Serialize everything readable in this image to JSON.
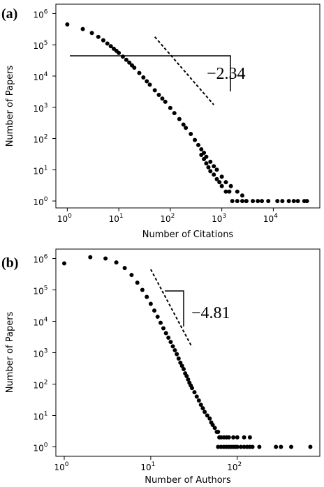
{
  "chart_data": [
    {
      "type": "scatter",
      "panel_label": "(a)",
      "title": "",
      "xlabel": "Number of Citations",
      "ylabel": "Number of Papers",
      "x_scale": "log",
      "y_scale": "log",
      "xlim": [
        0.6,
        80000
      ],
      "ylim": [
        0.6,
        2000000
      ],
      "x_ticks": [
        {
          "value": 1,
          "base": "10",
          "exp": "0"
        },
        {
          "value": 10,
          "base": "10",
          "exp": "1"
        },
        {
          "value": 100,
          "base": "10",
          "exp": "2"
        },
        {
          "value": 1000,
          "base": "10",
          "exp": "3"
        },
        {
          "value": 10000,
          "base": "10",
          "exp": "4"
        }
      ],
      "y_ticks": [
        {
          "value": 1,
          "base": "10",
          "exp": "0"
        },
        {
          "value": 10,
          "base": "10",
          "exp": "1"
        },
        {
          "value": 100,
          "base": "10",
          "exp": "2"
        },
        {
          "value": 1000,
          "base": "10",
          "exp": "3"
        },
        {
          "value": 10000,
          "base": "10",
          "exp": "4"
        },
        {
          "value": 100000,
          "base": "10",
          "exp": "5"
        },
        {
          "value": 1000000,
          "base": "10",
          "exp": "6"
        }
      ],
      "grid": false,
      "color": "#000000",
      "slope_annotation": {
        "text": "−2.34",
        "line_x": [
          50,
          700
        ],
        "line_y": [
          180000,
          1200
        ]
      },
      "points": [
        [
          1,
          450000
        ],
        [
          2,
          320000
        ],
        [
          3,
          240000
        ],
        [
          4,
          180000
        ],
        [
          5,
          140000
        ],
        [
          6,
          110000
        ],
        [
          7,
          90000
        ],
        [
          8,
          75000
        ],
        [
          9,
          64000
        ],
        [
          10,
          55000
        ],
        [
          12,
          42000
        ],
        [
          14,
          33000
        ],
        [
          16,
          27000
        ],
        [
          18,
          22000
        ],
        [
          20,
          18500
        ],
        [
          25,
          12500
        ],
        [
          30,
          9000
        ],
        [
          35,
          6800
        ],
        [
          40,
          5300
        ],
        [
          50,
          3500
        ],
        [
          60,
          2500
        ],
        [
          70,
          1900
        ],
        [
          80,
          1500
        ],
        [
          100,
          950
        ],
        [
          120,
          650
        ],
        [
          150,
          420
        ],
        [
          180,
          280
        ],
        [
          200,
          220
        ],
        [
          250,
          140
        ],
        [
          300,
          90
        ],
        [
          350,
          62
        ],
        [
          400,
          45
        ],
        [
          450,
          35
        ],
        [
          500,
          26
        ],
        [
          600,
          18
        ],
        [
          700,
          13
        ],
        [
          800,
          10
        ],
        [
          1000,
          6
        ],
        [
          1200,
          4
        ],
        [
          1500,
          3
        ],
        [
          2000,
          2
        ],
        [
          2500,
          1.5
        ],
        [
          3000,
          1
        ],
        [
          400,
          30
        ],
        [
          450,
          22
        ],
        [
          500,
          16
        ],
        [
          550,
          12
        ],
        [
          600,
          9
        ],
        [
          700,
          7
        ],
        [
          800,
          5
        ],
        [
          900,
          4
        ],
        [
          1000,
          3
        ],
        [
          1200,
          2
        ],
        [
          1400,
          2
        ],
        [
          1600,
          1
        ],
        [
          2000,
          1
        ],
        [
          2500,
          1
        ],
        [
          3000,
          1
        ],
        [
          4000,
          1
        ],
        [
          5000,
          1
        ],
        [
          6000,
          1
        ],
        [
          8000,
          1
        ],
        [
          12000,
          1
        ],
        [
          15000,
          1
        ],
        [
          20000,
          1
        ],
        [
          25000,
          1
        ],
        [
          30000,
          1
        ],
        [
          40000,
          1
        ],
        [
          45000,
          1
        ]
      ]
    },
    {
      "type": "scatter",
      "panel_label": "(b)",
      "title": "",
      "xlabel": "Number of Authors",
      "ylabel": "Number of Papers",
      "x_scale": "log",
      "y_scale": "log",
      "xlim": [
        0.8,
        900
      ],
      "ylim": [
        0.5,
        2000000
      ],
      "x_ticks": [
        {
          "value": 1,
          "base": "10",
          "exp": "0"
        },
        {
          "value": 10,
          "base": "10",
          "exp": "1"
        },
        {
          "value": 100,
          "base": "10",
          "exp": "2"
        }
      ],
      "y_ticks": [
        {
          "value": 1,
          "base": "10",
          "exp": "0"
        },
        {
          "value": 10,
          "base": "10",
          "exp": "1"
        },
        {
          "value": 100,
          "base": "10",
          "exp": "2"
        },
        {
          "value": 1000,
          "base": "10",
          "exp": "3"
        },
        {
          "value": 10000,
          "base": "10",
          "exp": "4"
        },
        {
          "value": 100000,
          "base": "10",
          "exp": "5"
        },
        {
          "value": 1000000,
          "base": "10",
          "exp": "6"
        }
      ],
      "grid": false,
      "color": "#000000",
      "slope_annotation": {
        "text": "−4.81",
        "line_x": [
          10,
          30
        ],
        "line_y": [
          450000,
          1500
        ]
      },
      "points": [
        [
          1,
          700000
        ],
        [
          2,
          1100000
        ],
        [
          3,
          1000000
        ],
        [
          4,
          750000
        ],
        [
          5,
          500000
        ],
        [
          6,
          300000
        ],
        [
          7,
          170000
        ],
        [
          8,
          100000
        ],
        [
          9,
          60000
        ],
        [
          10,
          36000
        ],
        [
          11,
          22000
        ],
        [
          12,
          14000
        ],
        [
          13,
          9000
        ],
        [
          14,
          6000
        ],
        [
          15,
          4200
        ],
        [
          16,
          3000
        ],
        [
          17,
          2200
        ],
        [
          18,
          1600
        ],
        [
          19,
          1200
        ],
        [
          20,
          900
        ],
        [
          21,
          650
        ],
        [
          22,
          480
        ],
        [
          23,
          380
        ],
        [
          24,
          300
        ],
        [
          25,
          220
        ],
        [
          26,
          180
        ],
        [
          27,
          140
        ],
        [
          28,
          110
        ],
        [
          29,
          90
        ],
        [
          30,
          75
        ],
        [
          32,
          55
        ],
        [
          34,
          40
        ],
        [
          36,
          30
        ],
        [
          38,
          22
        ],
        [
          40,
          17
        ],
        [
          42,
          13
        ],
        [
          45,
          10
        ],
        [
          48,
          8
        ],
        [
          50,
          6
        ],
        [
          52,
          5
        ],
        [
          55,
          4
        ],
        [
          58,
          3
        ],
        [
          60,
          3
        ],
        [
          62,
          2
        ],
        [
          65,
          2
        ],
        [
          70,
          2
        ],
        [
          75,
          2
        ],
        [
          80,
          2
        ],
        [
          90,
          2
        ],
        [
          100,
          2
        ],
        [
          120,
          2
        ],
        [
          140,
          2
        ],
        [
          60,
          1
        ],
        [
          65,
          1
        ],
        [
          70,
          1
        ],
        [
          75,
          1
        ],
        [
          80,
          1
        ],
        [
          85,
          1
        ],
        [
          90,
          1
        ],
        [
          95,
          1
        ],
        [
          100,
          1
        ],
        [
          110,
          1
        ],
        [
          120,
          1
        ],
        [
          130,
          1
        ],
        [
          140,
          1
        ],
        [
          150,
          1
        ],
        [
          180,
          1
        ],
        [
          280,
          1
        ],
        [
          320,
          1
        ],
        [
          420,
          1
        ],
        [
          700,
          1
        ]
      ]
    }
  ]
}
